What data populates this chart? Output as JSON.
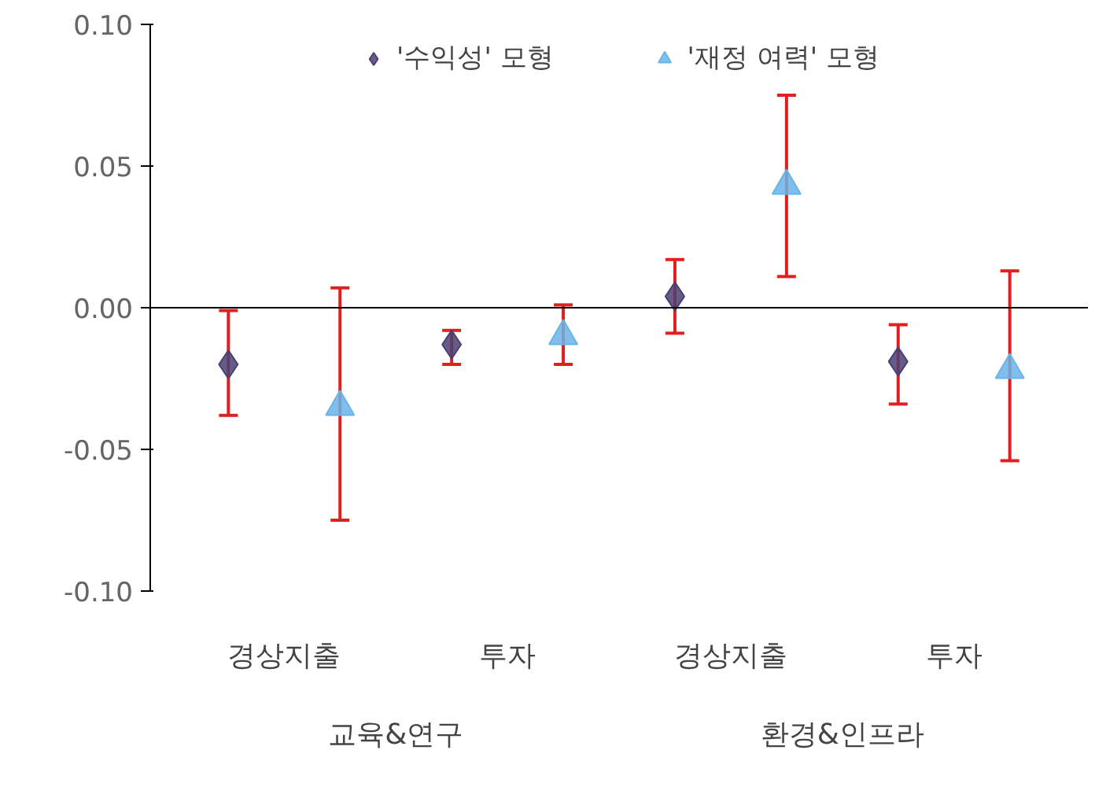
{
  "chart_data": {
    "type": "scatter",
    "categories": [
      "경상지출",
      "투자",
      "경상지출",
      "투자"
    ],
    "series": [
      {
        "name": "'수익성' 모형",
        "color": "#4b3f72",
        "marker": "diamond",
        "values": [
          -0.02,
          -0.013,
          0.004,
          -0.019
        ],
        "errors": [
          [
            -0.038,
            -0.001
          ],
          [
            -0.02,
            -0.008
          ],
          [
            -0.009,
            0.017
          ],
          [
            -0.034,
            -0.006
          ]
        ]
      },
      {
        "name": "'재정 여력' 모형",
        "color": "#6ab4e8",
        "marker": "triangle",
        "values": [
          -0.035,
          -0.01,
          0.043,
          -0.022
        ],
        "errors": [
          [
            -0.075,
            0.007
          ],
          [
            -0.02,
            0.001
          ],
          [
            0.011,
            0.075
          ],
          [
            -0.054,
            0.013
          ]
        ]
      }
    ],
    "annotations": [
      "교육&연구",
      "환경&인프라"
    ],
    "ylim": [
      -0.1,
      0.1
    ],
    "yticks": [
      {
        "value": -0.1,
        "label": "-0.10"
      },
      {
        "value": -0.05,
        "label": "-0.05"
      },
      {
        "value": 0.0,
        "label": "0.00"
      },
      {
        "value": 0.05,
        "label": "0.05"
      },
      {
        "value": 0.1,
        "label": "0.10"
      }
    ],
    "legend": "top"
  }
}
